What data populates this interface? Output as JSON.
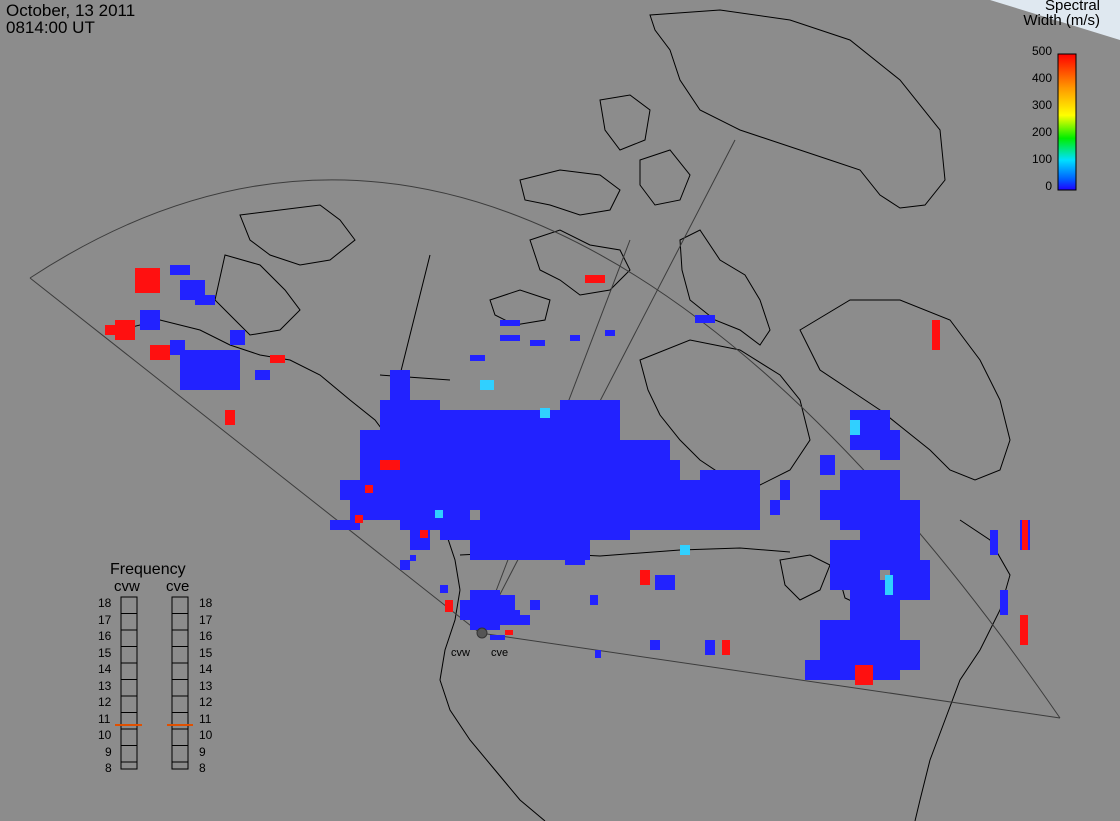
{
  "header": {
    "date": "October, 13 2011",
    "time": "0814:00 UT"
  },
  "colorbar": {
    "title_line1": "Spectral",
    "title_line2": "Width (m/s)",
    "ticks": [
      "500",
      "400",
      "300",
      "200",
      "100",
      "0"
    ],
    "value_range": [
      0,
      500
    ],
    "colors": [
      "#ff0000",
      "#ffa000",
      "#ffff00",
      "#00ff00",
      "#00ffff",
      "#0050ff",
      "#1a00ff"
    ]
  },
  "frequency_panel": {
    "title": "Frequency",
    "left_radar": "cvw",
    "right_radar": "cve",
    "scale": [
      "18",
      "17",
      "16",
      "15",
      "14",
      "13",
      "12",
      "11",
      "10",
      "9",
      "8"
    ],
    "cvw_frequency_mhz": 10.8,
    "cve_frequency_mhz": 10.8,
    "indicator_color": "#e05000"
  },
  "radar_sites": {
    "west": "cvw",
    "east": "cve"
  },
  "map": {
    "background": "#8c8c8c",
    "coastline_color": "#000000",
    "fov_color": "#404040",
    "scatter_blue": "#2222ff",
    "scatter_red": "#ff1010",
    "scatter_cyan": "#30d0ff"
  }
}
